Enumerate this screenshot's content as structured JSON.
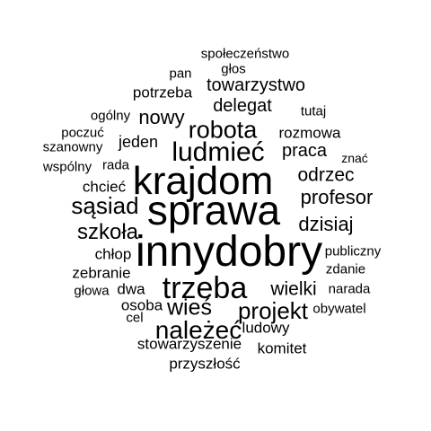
{
  "words": [
    {
      "text": "społeczeństwo",
      "weight": 1
    },
    {
      "text": "głos",
      "weight": 1
    },
    {
      "text": "pan",
      "weight": 1
    },
    {
      "text": "towarzystwo",
      "weight": 2
    },
    {
      "text": "potrzeba",
      "weight": 2
    },
    {
      "text": "delegat",
      "weight": 3
    },
    {
      "text": "tutaj",
      "weight": 1
    },
    {
      "text": "ogólny",
      "weight": 1
    },
    {
      "text": "nowy",
      "weight": 3
    },
    {
      "text": "robota",
      "weight": 4
    },
    {
      "text": "rozmowa",
      "weight": 2
    },
    {
      "text": "poczuć",
      "weight": 1
    },
    {
      "text": "szanowny",
      "weight": 1
    },
    {
      "text": "jeden",
      "weight": 2
    },
    {
      "text": "ludmieć",
      "weight": 5
    },
    {
      "text": "praca",
      "weight": 3
    },
    {
      "text": "znać",
      "weight": 1
    },
    {
      "text": "wspólny",
      "weight": 1
    },
    {
      "text": "rada",
      "weight": 1
    },
    {
      "text": "krajdom",
      "weight": 7
    },
    {
      "text": "odrzec",
      "weight": 3
    },
    {
      "text": "chcieć",
      "weight": 2
    },
    {
      "text": "profesor",
      "weight": 3
    },
    {
      "text": "sąsiad",
      "weight": 4
    },
    {
      "text": "sprawa",
      "weight": 8
    },
    {
      "text": "dzisiaj",
      "weight": 3
    },
    {
      "text": "szkoła",
      "weight": 4
    },
    {
      "text": "chłop",
      "weight": 2
    },
    {
      "text": "innydobry",
      "weight": 9
    },
    {
      "text": "publiczny",
      "weight": 1
    },
    {
      "text": "zdanie",
      "weight": 1
    },
    {
      "text": "zebranie",
      "weight": 2
    },
    {
      "text": "głowa",
      "weight": 1
    },
    {
      "text": "dwa",
      "weight": 2
    },
    {
      "text": "trzeba",
      "weight": 6
    },
    {
      "text": "wielki",
      "weight": 3
    },
    {
      "text": "narada",
      "weight": 1
    },
    {
      "text": "osoba",
      "weight": 2
    },
    {
      "text": "wieś",
      "weight": 4
    },
    {
      "text": "projekt",
      "weight": 4
    },
    {
      "text": "obywatel",
      "weight": 1
    },
    {
      "text": "cel",
      "weight": 1
    },
    {
      "text": "należeć",
      "weight": 5
    },
    {
      "text": "ludowy",
      "weight": 2
    },
    {
      "text": "stowarzyszenie",
      "weight": 2
    },
    {
      "text": "komitet",
      "weight": 2
    },
    {
      "text": "przyszłość",
      "weight": 2
    }
  ]
}
